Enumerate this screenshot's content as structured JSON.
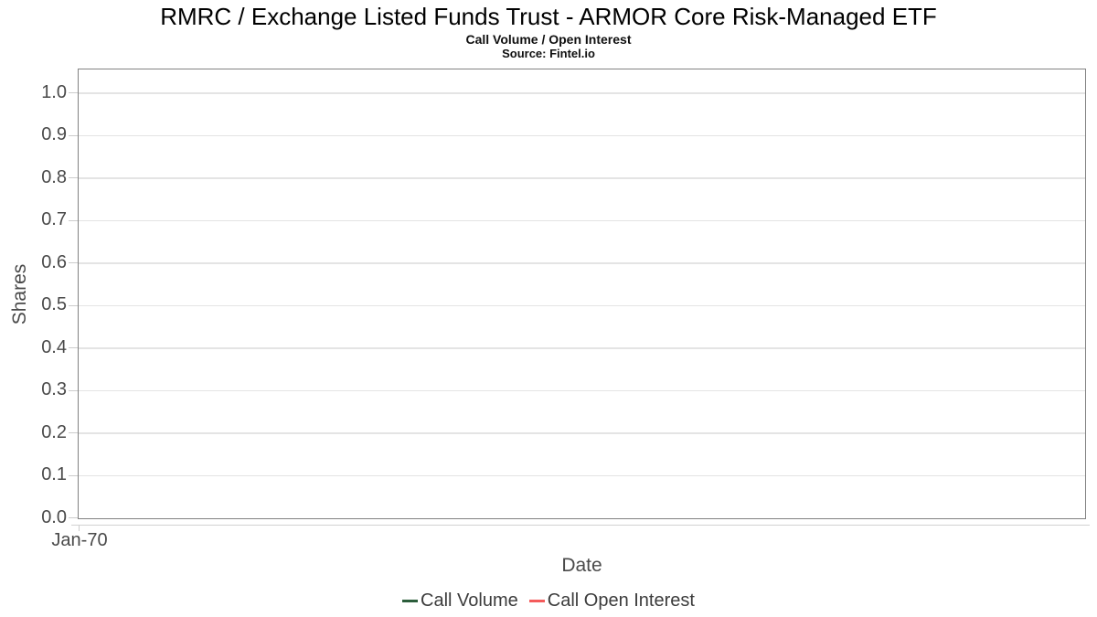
{
  "chart_data": {
    "type": "line",
    "title": "RMRC / Exchange Listed Funds Trust - ARMOR Core Risk-Managed ETF",
    "subtitle": "Call Volume / Open Interest",
    "source": "Source: Fintel.io",
    "xlabel": "Date",
    "ylabel": "Shares",
    "ylim": [
      0.0,
      1.0
    ],
    "y_ticks": [
      "1.0",
      "0.9",
      "0.8",
      "0.7",
      "0.6",
      "0.5",
      "0.4",
      "0.3",
      "0.2",
      "0.1",
      "0.0"
    ],
    "x_ticks": [
      "Jan-70"
    ],
    "grid": true,
    "legend_position": "bottom",
    "plot_border_color": "#828282",
    "gridline_color": "#e4e4e4",
    "axis_text_color": "#4a4a4a",
    "series": [
      {
        "name": "Call Volume",
        "color": "#2B5D3B",
        "x": [],
        "values": []
      },
      {
        "name": "Call Open Interest",
        "color": "#F45B5B",
        "x": [],
        "values": []
      }
    ]
  }
}
